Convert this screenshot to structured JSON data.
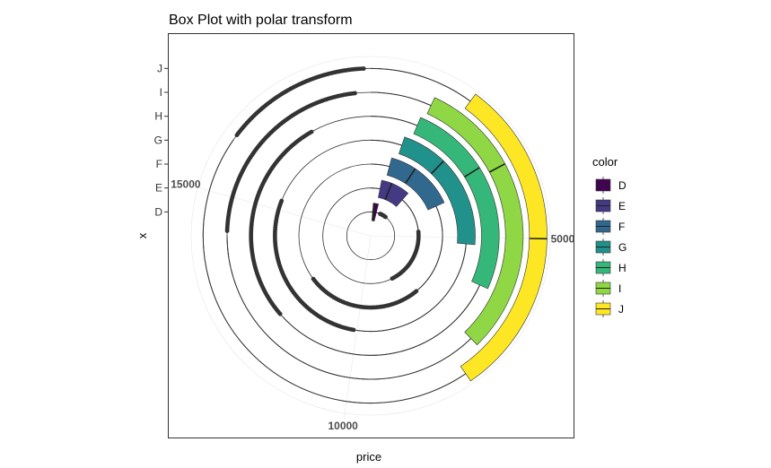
{
  "chart_data": {
    "type": "boxplot-polar",
    "title": "Box Plot with polar transform",
    "xlabel": "price",
    "ylabel": "x",
    "coord": "polar",
    "theta_ticks": [
      "5000",
      "10000",
      "15000"
    ],
    "theta_tick_values": [
      5000,
      10000,
      15000
    ],
    "theta_range": [
      326,
      18823
    ],
    "categories": [
      "D",
      "E",
      "F",
      "G",
      "H",
      "I",
      "J"
    ],
    "series": [
      {
        "name": "D",
        "color": "#440154",
        "lower": 326,
        "q1": 560,
        "median": 680,
        "q3": 1030,
        "upper": 1500,
        "outlier_start": 1520,
        "outlier_end": 2300
      },
      {
        "name": "E",
        "color": "#443983",
        "lower": 326,
        "q1": 900,
        "median": 1450,
        "q3": 2450,
        "upper": 4650,
        "outlier_start": 4700,
        "outlier_end": 8200
      },
      {
        "name": "F",
        "color": "#31688e",
        "lower": 326,
        "q1": 1100,
        "median": 2050,
        "q3": 3700,
        "upper": 7500,
        "outlier_start": 7550,
        "outlier_end": 12300
      },
      {
        "name": "G",
        "color": "#21918c",
        "lower": 326,
        "q1": 1300,
        "median": 2600,
        "q3": 5200,
        "upper": 10000,
        "outlier_start": 10100,
        "outlier_end": 15300
      },
      {
        "name": "H",
        "color": "#35b779",
        "lower": 326,
        "q1": 1500,
        "median": 3300,
        "q3": 6200,
        "upper": 12000,
        "outlier_start": 12100,
        "outlier_end": 17300
      },
      {
        "name": "I",
        "color": "#8fd744",
        "lower": 326,
        "q1": 1600,
        "median": 3500,
        "q3": 7300,
        "upper": 14200,
        "outlier_start": 14300,
        "outlier_end": 18500
      },
      {
        "name": "J",
        "color": "#fde725",
        "lower": 326,
        "q1": 2200,
        "median": 5000,
        "q3": 7800,
        "upper": 16000,
        "outlier_start": 16100,
        "outlier_end": 18700
      }
    ],
    "legend": {
      "title": "color",
      "position": "right"
    },
    "grid": true
  }
}
